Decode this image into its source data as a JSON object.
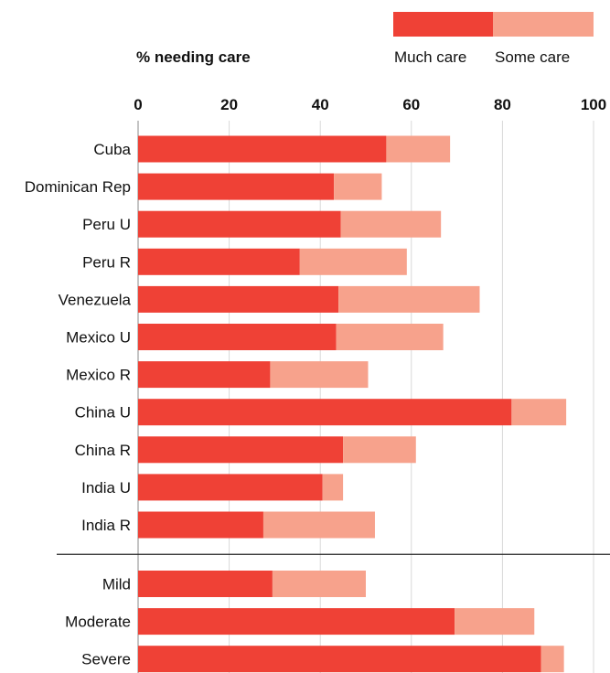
{
  "chart_data": {
    "type": "bar",
    "orientation": "horizontal",
    "stacked": true,
    "title": "% needing care",
    "xlim": [
      0,
      100
    ],
    "xticks": [
      0,
      20,
      40,
      60,
      80,
      100
    ],
    "grid": true,
    "legend_position": "top-right",
    "categories": [
      "Cuba",
      "Dominican Rep",
      "Peru U",
      "Peru R",
      "Venezuela",
      "Mexico U",
      "Mexico R",
      "China U",
      "China R",
      "India U",
      "India R",
      "Mild",
      "Moderate",
      "Severe"
    ],
    "groups": [
      {
        "categories": [
          "Cuba",
          "Dominican Rep",
          "Peru U",
          "Peru R",
          "Venezuela",
          "Mexico U",
          "Mexico R",
          "China U",
          "China R",
          "India U",
          "India R"
        ]
      },
      {
        "categories": [
          "Mild",
          "Moderate",
          "Severe"
        ]
      }
    ],
    "series": [
      {
        "name": "Much care",
        "color": "#ef4136",
        "values": [
          54.5,
          43,
          44.5,
          35.5,
          44,
          43.5,
          29,
          82,
          45,
          40.5,
          27.5,
          29.5,
          69.5,
          88.5
        ]
      },
      {
        "name": "Some care",
        "color": "#f7a28c",
        "values": [
          14,
          10.5,
          22,
          23.5,
          31,
          23.5,
          21.5,
          12,
          16,
          4.5,
          24.5,
          20.5,
          17.5,
          5
        ]
      }
    ]
  }
}
